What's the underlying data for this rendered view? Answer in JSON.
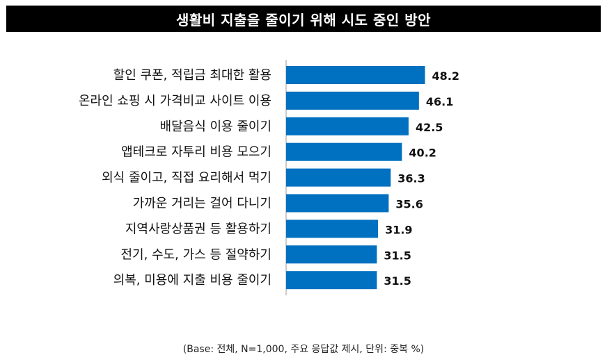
{
  "chart_data": {
    "type": "bar",
    "orientation": "horizontal",
    "title": "생활비 지출을 줄이기 위해 시도 중인 방안",
    "categories": [
      "할인 쿠폰, 적립금 최대한 활용",
      "온라인 쇼핑 시 가격비교 사이트 이용",
      "배달음식 이용 줄이기",
      "앱테크로 자투리 비용 모으기",
      "외식 줄이고, 직접 요리해서 먹기",
      "가까운 거리는 걸어 다니기",
      "지역사랑상품권 등 활용하기",
      "전기, 수도, 가스 등 절약하기",
      "의복, 미용에 지출 비용 줄이기"
    ],
    "values": [
      48.2,
      46.1,
      42.5,
      40.2,
      36.3,
      35.6,
      31.9,
      31.5,
      31.5
    ],
    "value_labels": [
      "48.2",
      "46.1",
      "42.5",
      "40.2",
      "36.3",
      "35.6",
      "31.9",
      "31.5",
      "31.5"
    ],
    "bar_color": "#0070C0",
    "grid": false,
    "legend": "none"
  },
  "footnote": "(Base: 전체, N=1,000, 주요 응답값 제시, 단위: 중복 %)"
}
